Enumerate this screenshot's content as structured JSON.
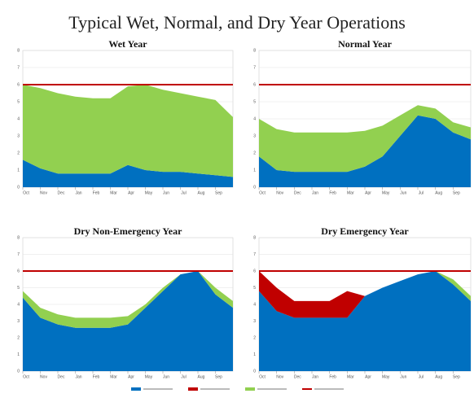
{
  "title": "Typical Wet, Normal, and Dry Year Operations",
  "legend": {
    "position": "bottom",
    "colors": [
      "#0070c0",
      "#c00000",
      "#92d050",
      "#c00000"
    ]
  },
  "chart_data": [
    {
      "type": "area",
      "title": "Wet Year",
      "x": [
        0,
        1,
        2,
        3,
        4,
        5,
        6,
        7,
        8,
        9,
        10,
        11,
        12
      ],
      "xlim": [
        0,
        12
      ],
      "xticks": [
        {
          "value": 0,
          "label": "Oct"
        },
        {
          "value": 1,
          "label": "Nov"
        },
        {
          "value": 2,
          "label": "Dec"
        },
        {
          "value": 3,
          "label": "Jan"
        },
        {
          "value": 4,
          "label": "Feb"
        },
        {
          "value": 5,
          "label": "Mar"
        },
        {
          "value": 6,
          "label": "Apr"
        },
        {
          "value": 7,
          "label": "May"
        },
        {
          "value": 8,
          "label": "Jun"
        },
        {
          "value": 9,
          "label": "Jul"
        },
        {
          "value": 10,
          "label": "Aug"
        },
        {
          "value": 11,
          "label": "Sep"
        }
      ],
      "ylim": [
        0,
        8
      ],
      "yticks": [
        0,
        1,
        2,
        3,
        4,
        5,
        6,
        7,
        8
      ],
      "grid": true,
      "reference_line": {
        "value": 6,
        "color": "#c00000"
      },
      "series": [
        {
          "color": "#0070c0",
          "values": [
            1.6,
            1.1,
            0.8,
            0.8,
            0.8,
            0.8,
            1.3,
            1.0,
            0.9,
            0.9,
            0.8,
            0.7,
            0.6
          ]
        },
        {
          "color": "#92d050",
          "values": [
            4.4,
            4.7,
            4.7,
            4.5,
            4.4,
            4.4,
            4.6,
            5.0,
            4.8,
            4.6,
            4.5,
            4.4,
            3.5
          ]
        }
      ]
    },
    {
      "type": "area",
      "title": "Normal Year",
      "x": [
        0,
        1,
        2,
        3,
        4,
        5,
        6,
        7,
        8,
        9,
        10,
        11,
        12
      ],
      "xlim": [
        0,
        12
      ],
      "xticks": [
        {
          "value": 0,
          "label": "Oct"
        },
        {
          "value": 1,
          "label": "Nov"
        },
        {
          "value": 2,
          "label": "Dec"
        },
        {
          "value": 3,
          "label": "Jan"
        },
        {
          "value": 4,
          "label": "Feb"
        },
        {
          "value": 5,
          "label": "Mar"
        },
        {
          "value": 6,
          "label": "Apr"
        },
        {
          "value": 7,
          "label": "May"
        },
        {
          "value": 8,
          "label": "Jun"
        },
        {
          "value": 9,
          "label": "Jul"
        },
        {
          "value": 10,
          "label": "Aug"
        },
        {
          "value": 11,
          "label": "Sep"
        }
      ],
      "ylim": [
        0,
        8
      ],
      "yticks": [
        0,
        1,
        2,
        3,
        4,
        5,
        6,
        7,
        8
      ],
      "grid": true,
      "reference_line": {
        "value": 6,
        "color": "#c00000"
      },
      "series": [
        {
          "color": "#0070c0",
          "values": [
            1.8,
            1.0,
            0.9,
            0.9,
            0.9,
            0.9,
            1.2,
            1.8,
            3.0,
            4.2,
            4.0,
            3.2,
            2.8
          ]
        },
        {
          "color": "#92d050",
          "values": [
            2.2,
            2.4,
            2.3,
            2.3,
            2.3,
            2.3,
            2.1,
            1.8,
            1.2,
            0.6,
            0.6,
            0.6,
            0.7
          ]
        }
      ]
    },
    {
      "type": "area",
      "title": "Dry Non-Emergency Year",
      "x": [
        0,
        1,
        2,
        3,
        4,
        5,
        6,
        7,
        8,
        9,
        10,
        11,
        12
      ],
      "xlim": [
        0,
        12
      ],
      "xticks": [
        {
          "value": 0,
          "label": "Oct"
        },
        {
          "value": 1,
          "label": "Nov"
        },
        {
          "value": 2,
          "label": "Dec"
        },
        {
          "value": 3,
          "label": "Jan"
        },
        {
          "value": 4,
          "label": "Feb"
        },
        {
          "value": 5,
          "label": "Mar"
        },
        {
          "value": 6,
          "label": "Apr"
        },
        {
          "value": 7,
          "label": "May"
        },
        {
          "value": 8,
          "label": "Jun"
        },
        {
          "value": 9,
          "label": "Jul"
        },
        {
          "value": 10,
          "label": "Aug"
        },
        {
          "value": 11,
          "label": "Sep"
        }
      ],
      "ylim": [
        0,
        8
      ],
      "yticks": [
        0,
        1,
        2,
        3,
        4,
        5,
        6,
        7,
        8
      ],
      "grid": true,
      "reference_line": {
        "value": 6,
        "color": "#c00000"
      },
      "series": [
        {
          "color": "#0070c0",
          "values": [
            4.4,
            3.2,
            2.8,
            2.6,
            2.6,
            2.6,
            2.8,
            3.8,
            4.8,
            5.8,
            6.0,
            4.6,
            3.8
          ]
        },
        {
          "color": "#92d050",
          "values": [
            0.4,
            0.6,
            0.6,
            0.6,
            0.6,
            0.6,
            0.5,
            0.2,
            0.2,
            0.0,
            0.0,
            0.4,
            0.4
          ]
        }
      ]
    },
    {
      "type": "area",
      "title": "Dry Emergency Year",
      "x": [
        0,
        1,
        2,
        3,
        4,
        5,
        6,
        7,
        8,
        9,
        10,
        11,
        12
      ],
      "xlim": [
        0,
        12
      ],
      "xticks": [
        {
          "value": 0,
          "label": "Oct"
        },
        {
          "value": 1,
          "label": "Nov"
        },
        {
          "value": 2,
          "label": "Dec"
        },
        {
          "value": 3,
          "label": "Jan"
        },
        {
          "value": 4,
          "label": "Feb"
        },
        {
          "value": 5,
          "label": "Mar"
        },
        {
          "value": 6,
          "label": "Apr"
        },
        {
          "value": 7,
          "label": "May"
        },
        {
          "value": 8,
          "label": "Jun"
        },
        {
          "value": 9,
          "label": "Jul"
        },
        {
          "value": 10,
          "label": "Aug"
        },
        {
          "value": 11,
          "label": "Sep"
        }
      ],
      "ylim": [
        0,
        8
      ],
      "yticks": [
        0,
        1,
        2,
        3,
        4,
        5,
        6,
        7,
        8
      ],
      "grid": true,
      "reference_line": {
        "value": 6,
        "color": "#c00000"
      },
      "series": [
        {
          "color": "#0070c0",
          "values": [
            4.8,
            3.6,
            3.2,
            3.2,
            3.2,
            3.2,
            4.5,
            5.0,
            5.4,
            5.8,
            6.0,
            5.2,
            4.2
          ]
        },
        {
          "color": "#c00000",
          "values": [
            1.2,
            1.4,
            1.0,
            1.0,
            1.0,
            1.6,
            0,
            0,
            0,
            0,
            0,
            0,
            0
          ]
        },
        {
          "color": "#92d050",
          "values": [
            0,
            0,
            0,
            0,
            0,
            0,
            0,
            0,
            0,
            0,
            0,
            0.3,
            0.3
          ]
        }
      ]
    }
  ]
}
